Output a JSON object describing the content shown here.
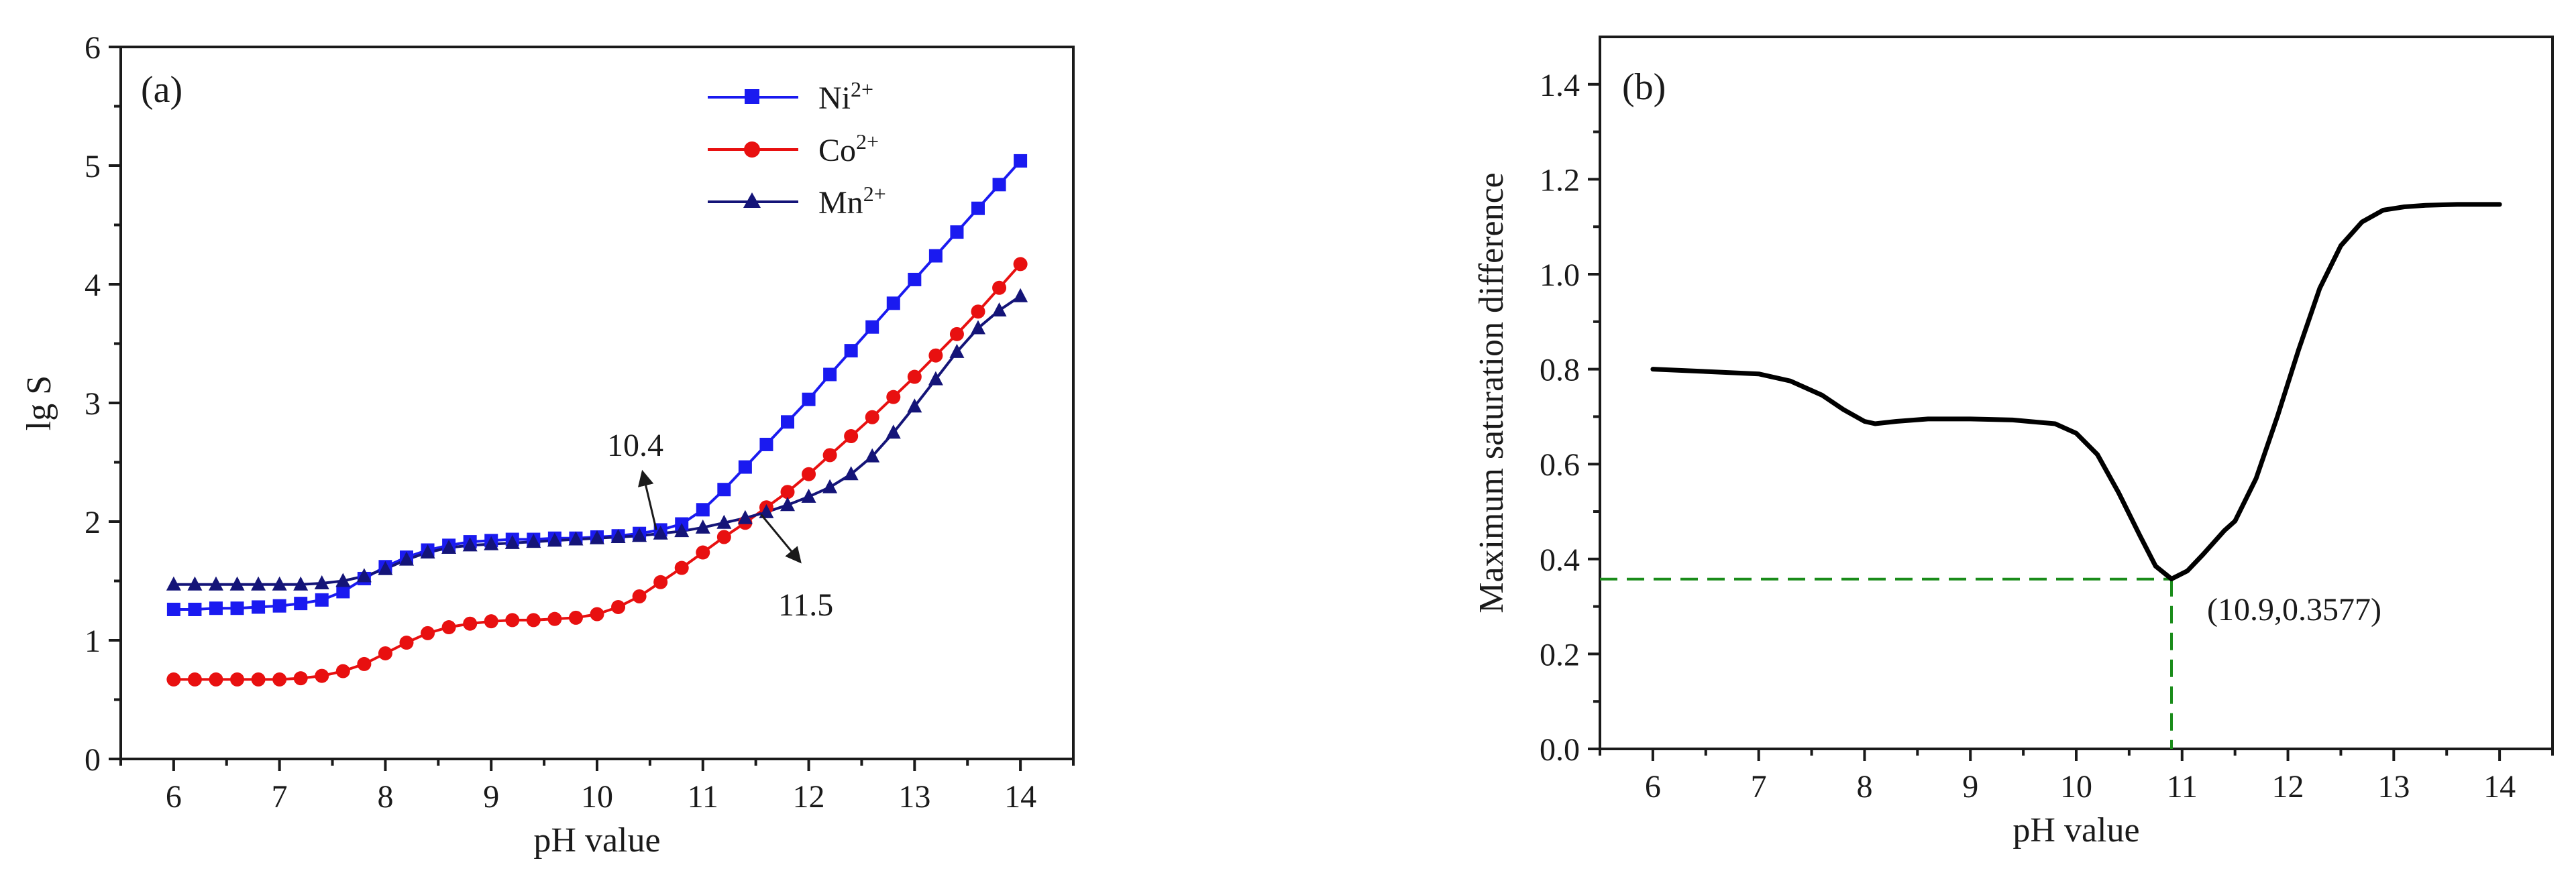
{
  "chart_data": [
    {
      "id": "a",
      "type": "line",
      "panel_label": "(a)",
      "xlabel": "pH value",
      "ylabel": "lg S",
      "xlim": [
        5.5,
        14.5
      ],
      "ylim": [
        0,
        6
      ],
      "xticks": [
        6,
        7,
        8,
        9,
        10,
        11,
        12,
        13,
        14
      ],
      "yticks": [
        0,
        1,
        2,
        3,
        4,
        5,
        6
      ],
      "legend_position": "top-center",
      "series": [
        {
          "name": "Ni",
          "superscript": "2+",
          "color": "#1a1af0",
          "marker": "square",
          "x": [
            6.0,
            6.2,
            6.4,
            6.6,
            6.8,
            7.0,
            7.2,
            7.4,
            7.6,
            7.8,
            8.0,
            8.2,
            8.4,
            8.6,
            8.8,
            9.0,
            9.2,
            9.4,
            9.6,
            9.8,
            10.0,
            10.2,
            10.4,
            10.6,
            10.8,
            11.0,
            11.2,
            11.4,
            11.6,
            11.8,
            12.0,
            12.2,
            12.4,
            12.6,
            12.8,
            13.0,
            13.2,
            13.4,
            13.6,
            13.8,
            14.0
          ],
          "values": [
            1.26,
            1.26,
            1.27,
            1.27,
            1.28,
            1.29,
            1.31,
            1.34,
            1.41,
            1.52,
            1.62,
            1.7,
            1.76,
            1.8,
            1.83,
            1.84,
            1.85,
            1.85,
            1.86,
            1.86,
            1.87,
            1.88,
            1.9,
            1.93,
            1.98,
            2.1,
            2.27,
            2.46,
            2.65,
            2.84,
            3.03,
            3.24,
            3.44,
            3.64,
            3.84,
            4.04,
            4.24,
            4.44,
            4.64,
            4.84,
            5.04
          ]
        },
        {
          "name": "Co",
          "superscript": "2+",
          "color": "#e81010",
          "marker": "circle",
          "x": [
            6.0,
            6.2,
            6.4,
            6.6,
            6.8,
            7.0,
            7.2,
            7.4,
            7.6,
            7.8,
            8.0,
            8.2,
            8.4,
            8.6,
            8.8,
            9.0,
            9.2,
            9.4,
            9.6,
            9.8,
            10.0,
            10.2,
            10.4,
            10.6,
            10.8,
            11.0,
            11.2,
            11.4,
            11.6,
            11.8,
            12.0,
            12.2,
            12.4,
            12.6,
            12.8,
            13.0,
            13.2,
            13.4,
            13.6,
            13.8,
            14.0
          ],
          "values": [
            0.67,
            0.67,
            0.67,
            0.67,
            0.67,
            0.67,
            0.68,
            0.7,
            0.74,
            0.8,
            0.89,
            0.98,
            1.06,
            1.11,
            1.14,
            1.16,
            1.17,
            1.17,
            1.18,
            1.19,
            1.22,
            1.28,
            1.37,
            1.49,
            1.61,
            1.74,
            1.87,
            1.99,
            2.12,
            2.25,
            2.4,
            2.56,
            2.72,
            2.88,
            3.05,
            3.22,
            3.4,
            3.58,
            3.77,
            3.97,
            4.17
          ]
        },
        {
          "name": "Mn",
          "superscript": "2+",
          "color": "#141478",
          "marker": "triangle",
          "x": [
            6.0,
            6.2,
            6.4,
            6.6,
            6.8,
            7.0,
            7.2,
            7.4,
            7.6,
            7.8,
            8.0,
            8.2,
            8.4,
            8.6,
            8.8,
            9.0,
            9.2,
            9.4,
            9.6,
            9.8,
            10.0,
            10.2,
            10.4,
            10.6,
            10.8,
            11.0,
            11.2,
            11.4,
            11.6,
            11.8,
            12.0,
            12.2,
            12.4,
            12.6,
            12.8,
            13.0,
            13.2,
            13.4,
            13.6,
            13.8,
            14.0
          ],
          "values": [
            1.47,
            1.47,
            1.47,
            1.47,
            1.47,
            1.47,
            1.47,
            1.48,
            1.5,
            1.54,
            1.6,
            1.68,
            1.74,
            1.78,
            1.8,
            1.81,
            1.82,
            1.83,
            1.84,
            1.85,
            1.86,
            1.87,
            1.88,
            1.9,
            1.92,
            1.95,
            1.99,
            2.03,
            2.08,
            2.14,
            2.21,
            2.29,
            2.4,
            2.55,
            2.75,
            2.97,
            3.2,
            3.43,
            3.63,
            3.78,
            3.9
          ]
        }
      ],
      "annotations": [
        {
          "text": "10.4",
          "target_x": 10.6,
          "target_y": 1.9,
          "arrow": true
        },
        {
          "text": "11.5",
          "target_x": 11.5,
          "target_y": 2.1,
          "arrow": true
        }
      ]
    },
    {
      "id": "b",
      "type": "line",
      "panel_label": "(b)",
      "xlabel": "pH value",
      "ylabel": "Maximum saturation difference",
      "xlim": [
        5.5,
        14.5
      ],
      "ylim": [
        0,
        1.5
      ],
      "xticks": [
        6,
        7,
        8,
        9,
        10,
        11,
        12,
        13,
        14
      ],
      "yticks": [
        0.0,
        0.2,
        0.4,
        0.6,
        0.8,
        1.0,
        1.2,
        1.4
      ],
      "ytick_labels": [
        "0.0",
        "0.2",
        "0.4",
        "0.6",
        "0.8",
        "1.0",
        "1.2",
        "1.4"
      ],
      "series": [
        {
          "name": "Maximum saturation difference",
          "color": "#000000",
          "x": [
            6.0,
            6.5,
            7.0,
            7.3,
            7.6,
            7.8,
            8.0,
            8.1,
            8.3,
            8.6,
            9.0,
            9.4,
            9.8,
            10.0,
            10.2,
            10.4,
            10.6,
            10.75,
            10.9,
            11.05,
            11.2,
            11.4,
            11.5,
            11.7,
            11.9,
            12.1,
            12.3,
            12.5,
            12.7,
            12.9,
            13.1,
            13.3,
            13.6,
            14.0
          ],
          "values": [
            0.8,
            0.795,
            0.79,
            0.775,
            0.745,
            0.715,
            0.69,
            0.685,
            0.69,
            0.695,
            0.695,
            0.693,
            0.685,
            0.665,
            0.62,
            0.54,
            0.45,
            0.385,
            0.358,
            0.375,
            0.41,
            0.46,
            0.48,
            0.57,
            0.7,
            0.84,
            0.97,
            1.06,
            1.11,
            1.135,
            1.142,
            1.145,
            1.147,
            1.147
          ]
        }
      ],
      "reference_point": {
        "x": 10.9,
        "y": 0.3577,
        "label": "(10.9,0.3577)",
        "color": "#1a8c1a"
      }
    }
  ]
}
